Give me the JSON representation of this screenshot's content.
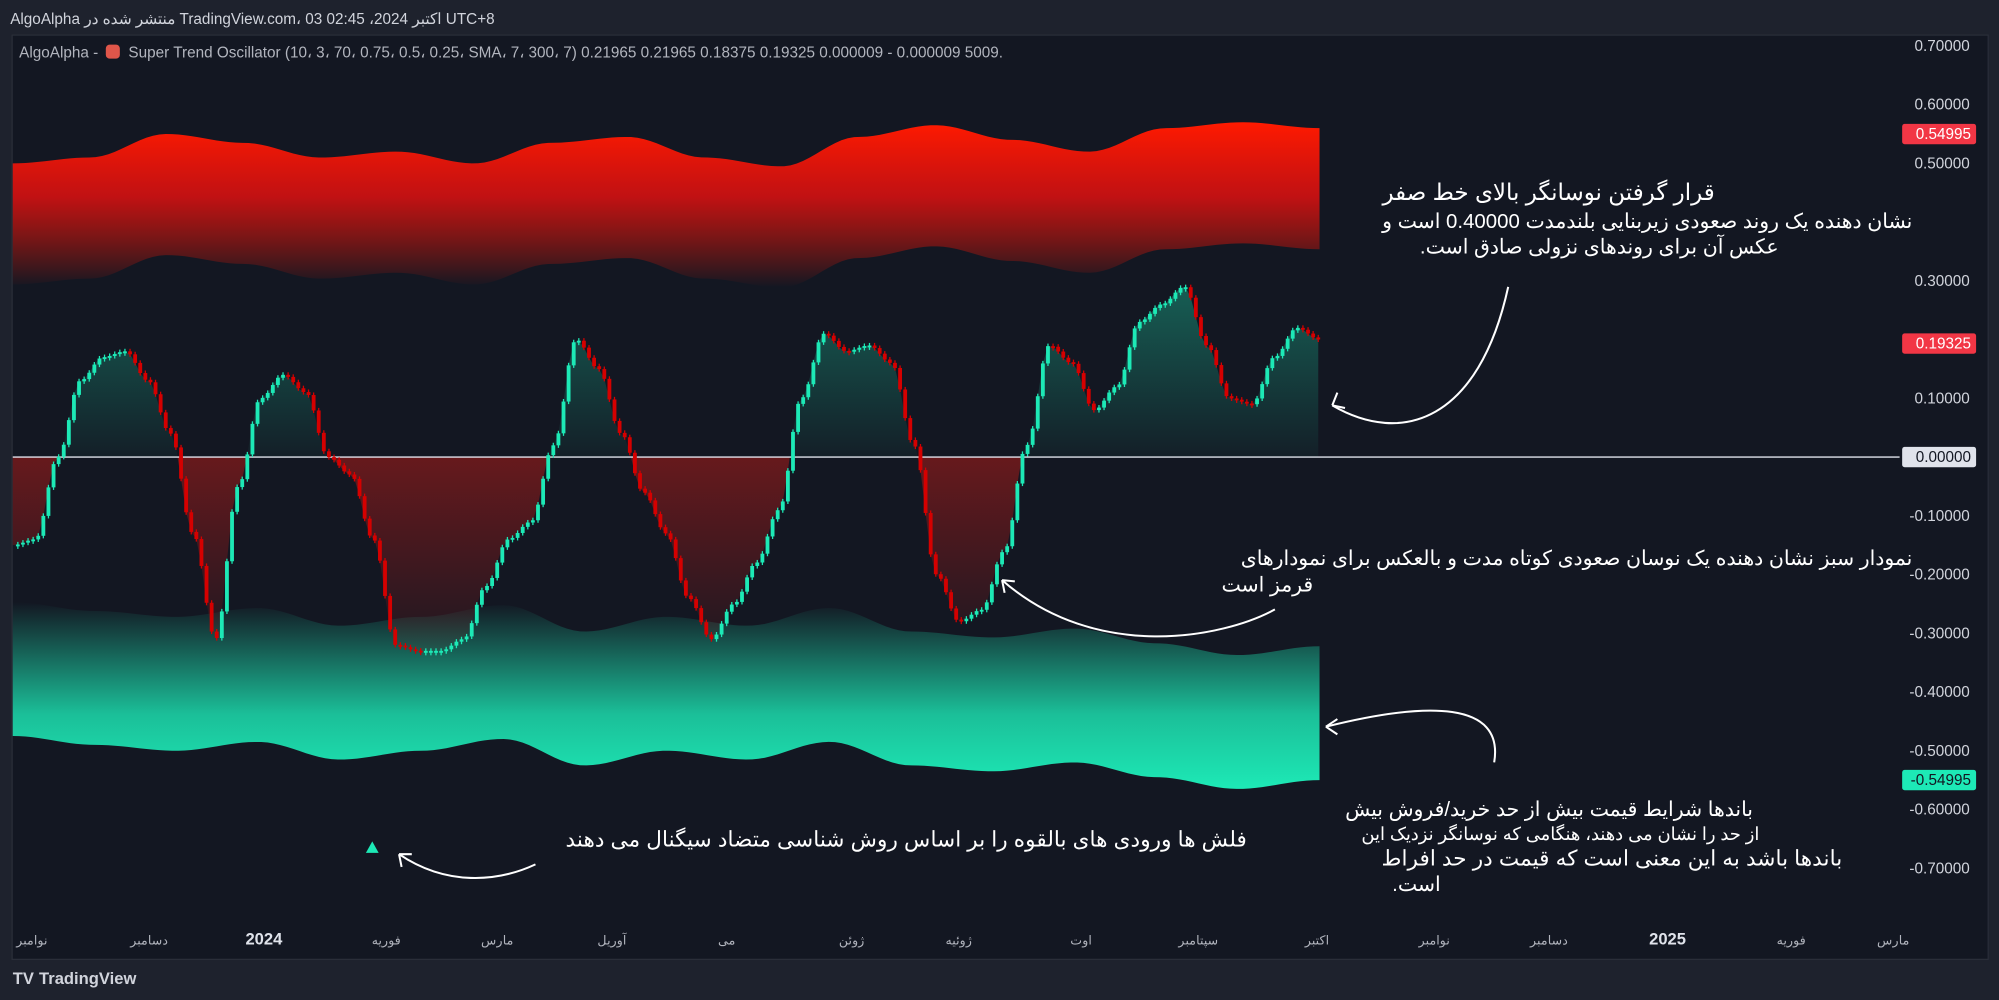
{
  "header": {
    "published": "AlgoAlpha منتشر شده در TradingView.com، 03 اکتبر 2024، 02:45 UTC+8"
  },
  "legend": {
    "author": "AlgoAlpha -",
    "indicator_icon": "indicator-icon",
    "text": "Super Trend Oscillator (10، 3، 70، 0.75، 0.5، 0.25، SMA، 7، 300، 7) 0.21965 0.21965 0.18375 0.19325 0.000009 - 0.000009 5009."
  },
  "annotations": {
    "zero_line": [
      "قرار گرفتن نوسانگر بالای خط صفر",
      "نشان دهنده یک روند صعودی زیربنایی بلندمدت 0.40000 است و",
      "عکس آن برای روندهای نزولی صادق است."
    ],
    "green_bars": [
      "نمودار سبز نشان دهنده یک نوسان صعودی کوتاه مدت و بالعکس برای نمودارهای",
      "قرمز است"
    ],
    "bands": [
      "باندها شرایط قیمت بیش از حد خرید/فروش بیش",
      "از حد را نشان می دهند، هنگامی که نوسانگر نزدیک این",
      "باندها باشد به این معنی است که قیمت در حد افراط",
      "است."
    ],
    "arrows": "فلش ها ورودی های بالقوه را بر اساس روش شناسی متضاد سیگنال می دهند"
  },
  "brand": {
    "logo": "17",
    "name": "TradingView"
  },
  "colors": {
    "up": "#1de9b6",
    "down": "#d50000",
    "band_upper": "#ff1a00",
    "band_lower": "#1de9b6",
    "background": "#131722",
    "zero_line": "#ffffff"
  },
  "chart_data": {
    "type": "candlestick-oscillator",
    "ylim": [
      -0.75,
      0.75
    ],
    "y_ticks": [
      "0.70000",
      "0.60000",
      "0.50000",
      "0.30000",
      "0.10000",
      "-0.10000",
      "-0.20000",
      "-0.30000",
      "-0.40000",
      "-0.50000",
      "-0.60000",
      "-0.70000"
    ],
    "y_tick_values": [
      0.7,
      0.6,
      0.5,
      0.3,
      0.1,
      -0.1,
      -0.2,
      -0.3,
      -0.4,
      -0.5,
      -0.6,
      -0.7
    ],
    "x_ticks": [
      "نوامبر",
      "دسامبر",
      "2024",
      "فوریه",
      "مارس",
      "آوریل",
      "می",
      "ژوئن",
      "ژوئیه",
      "اوت",
      "سپتامبر",
      "اکتبر",
      "نوامبر",
      "دسامبر",
      "2025",
      "فوریه",
      "مارس"
    ],
    "badges": [
      {
        "label": "0.54995",
        "value": 0.54995,
        "color": "#f23645",
        "text_color": "#ffffff"
      },
      {
        "label": "0.19325",
        "value": 0.19325,
        "color": "#f23645",
        "text_color": "#ffffff"
      },
      {
        "label": "0.00000",
        "value": 0.0,
        "color": "#e0e3eb",
        "text_color": "#131722"
      },
      {
        "label": "-0.54995",
        "value": -0.54995,
        "color": "#1de9b6",
        "text_color": "#131722"
      }
    ],
    "oscillator": [
      -0.15,
      -0.14,
      0.0,
      0.13,
      0.17,
      0.18,
      0.13,
      0.04,
      -0.13,
      -0.31,
      -0.05,
      0.1,
      0.14,
      0.11,
      0.0,
      -0.03,
      -0.14,
      -0.32,
      -0.33,
      -0.33,
      -0.31,
      -0.22,
      -0.14,
      -0.11,
      0.02,
      0.2,
      0.15,
      0.04,
      -0.06,
      -0.13,
      -0.24,
      -0.31,
      -0.25,
      -0.18,
      -0.09,
      0.1,
      0.21,
      0.18,
      0.19,
      0.16,
      0.02,
      -0.2,
      -0.28,
      -0.26,
      -0.16,
      0.02,
      0.19,
      0.16,
      0.08,
      0.12,
      0.23,
      0.26,
      0.29,
      0.19,
      0.1,
      0.09,
      0.17,
      0.22,
      0.2
    ],
    "upper_band": [
      0.5,
      0.51,
      0.55,
      0.535,
      0.51,
      0.52,
      0.5,
      0.535,
      0.545,
      0.51,
      0.495,
      0.545,
      0.565,
      0.54,
      0.52,
      0.56,
      0.57,
      0.56
    ],
    "lower_band": [
      -0.475,
      -0.49,
      -0.5,
      -0.485,
      -0.515,
      -0.5,
      -0.48,
      -0.525,
      -0.5,
      -0.515,
      -0.485,
      -0.525,
      -0.535,
      -0.52,
      -0.545,
      -0.565,
      -0.55
    ],
    "signals": [
      {
        "type": "bullish-triangle",
        "value": -0.67
      }
    ]
  }
}
